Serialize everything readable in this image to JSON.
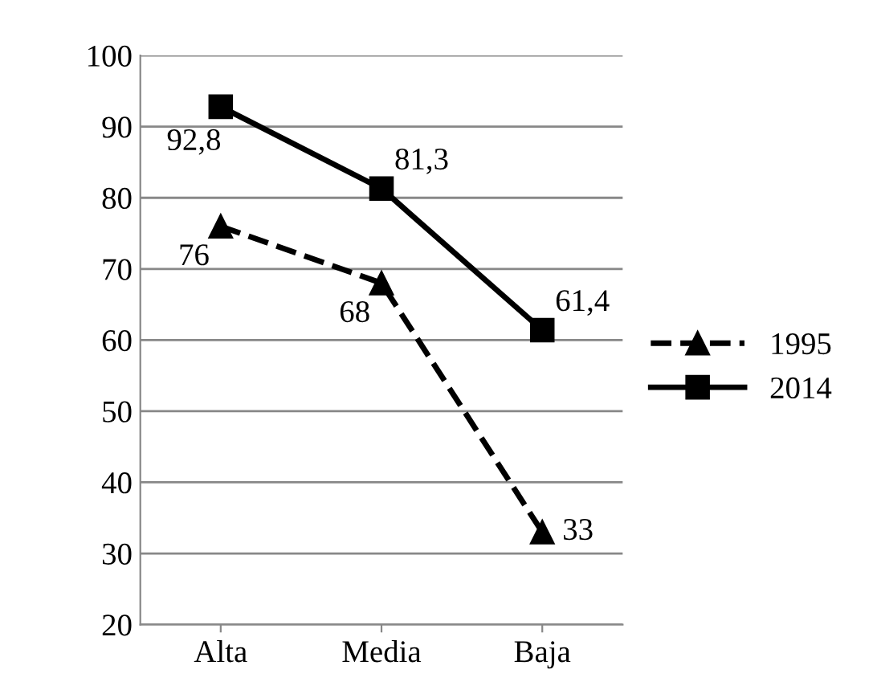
{
  "chart_data": {
    "type": "line",
    "categories": [
      "Alta",
      "Media",
      "Baja"
    ],
    "series": [
      {
        "name": "1995",
        "color": "#000000",
        "values": [
          76,
          68,
          33
        ],
        "value_labels": [
          "76",
          "68",
          "33"
        ],
        "marker": "triangle",
        "line_style": "dashed"
      },
      {
        "name": "2014",
        "color": "#000000",
        "values": [
          92.8,
          81.3,
          61.4
        ],
        "value_labels": [
          "92,8",
          "81,3",
          "61,4"
        ],
        "marker": "square",
        "line_style": "solid"
      }
    ],
    "ylim": [
      20,
      100
    ],
    "yticks": [
      20,
      30,
      40,
      50,
      60,
      70,
      80,
      90,
      100
    ],
    "grid": "y",
    "legend": "right"
  }
}
